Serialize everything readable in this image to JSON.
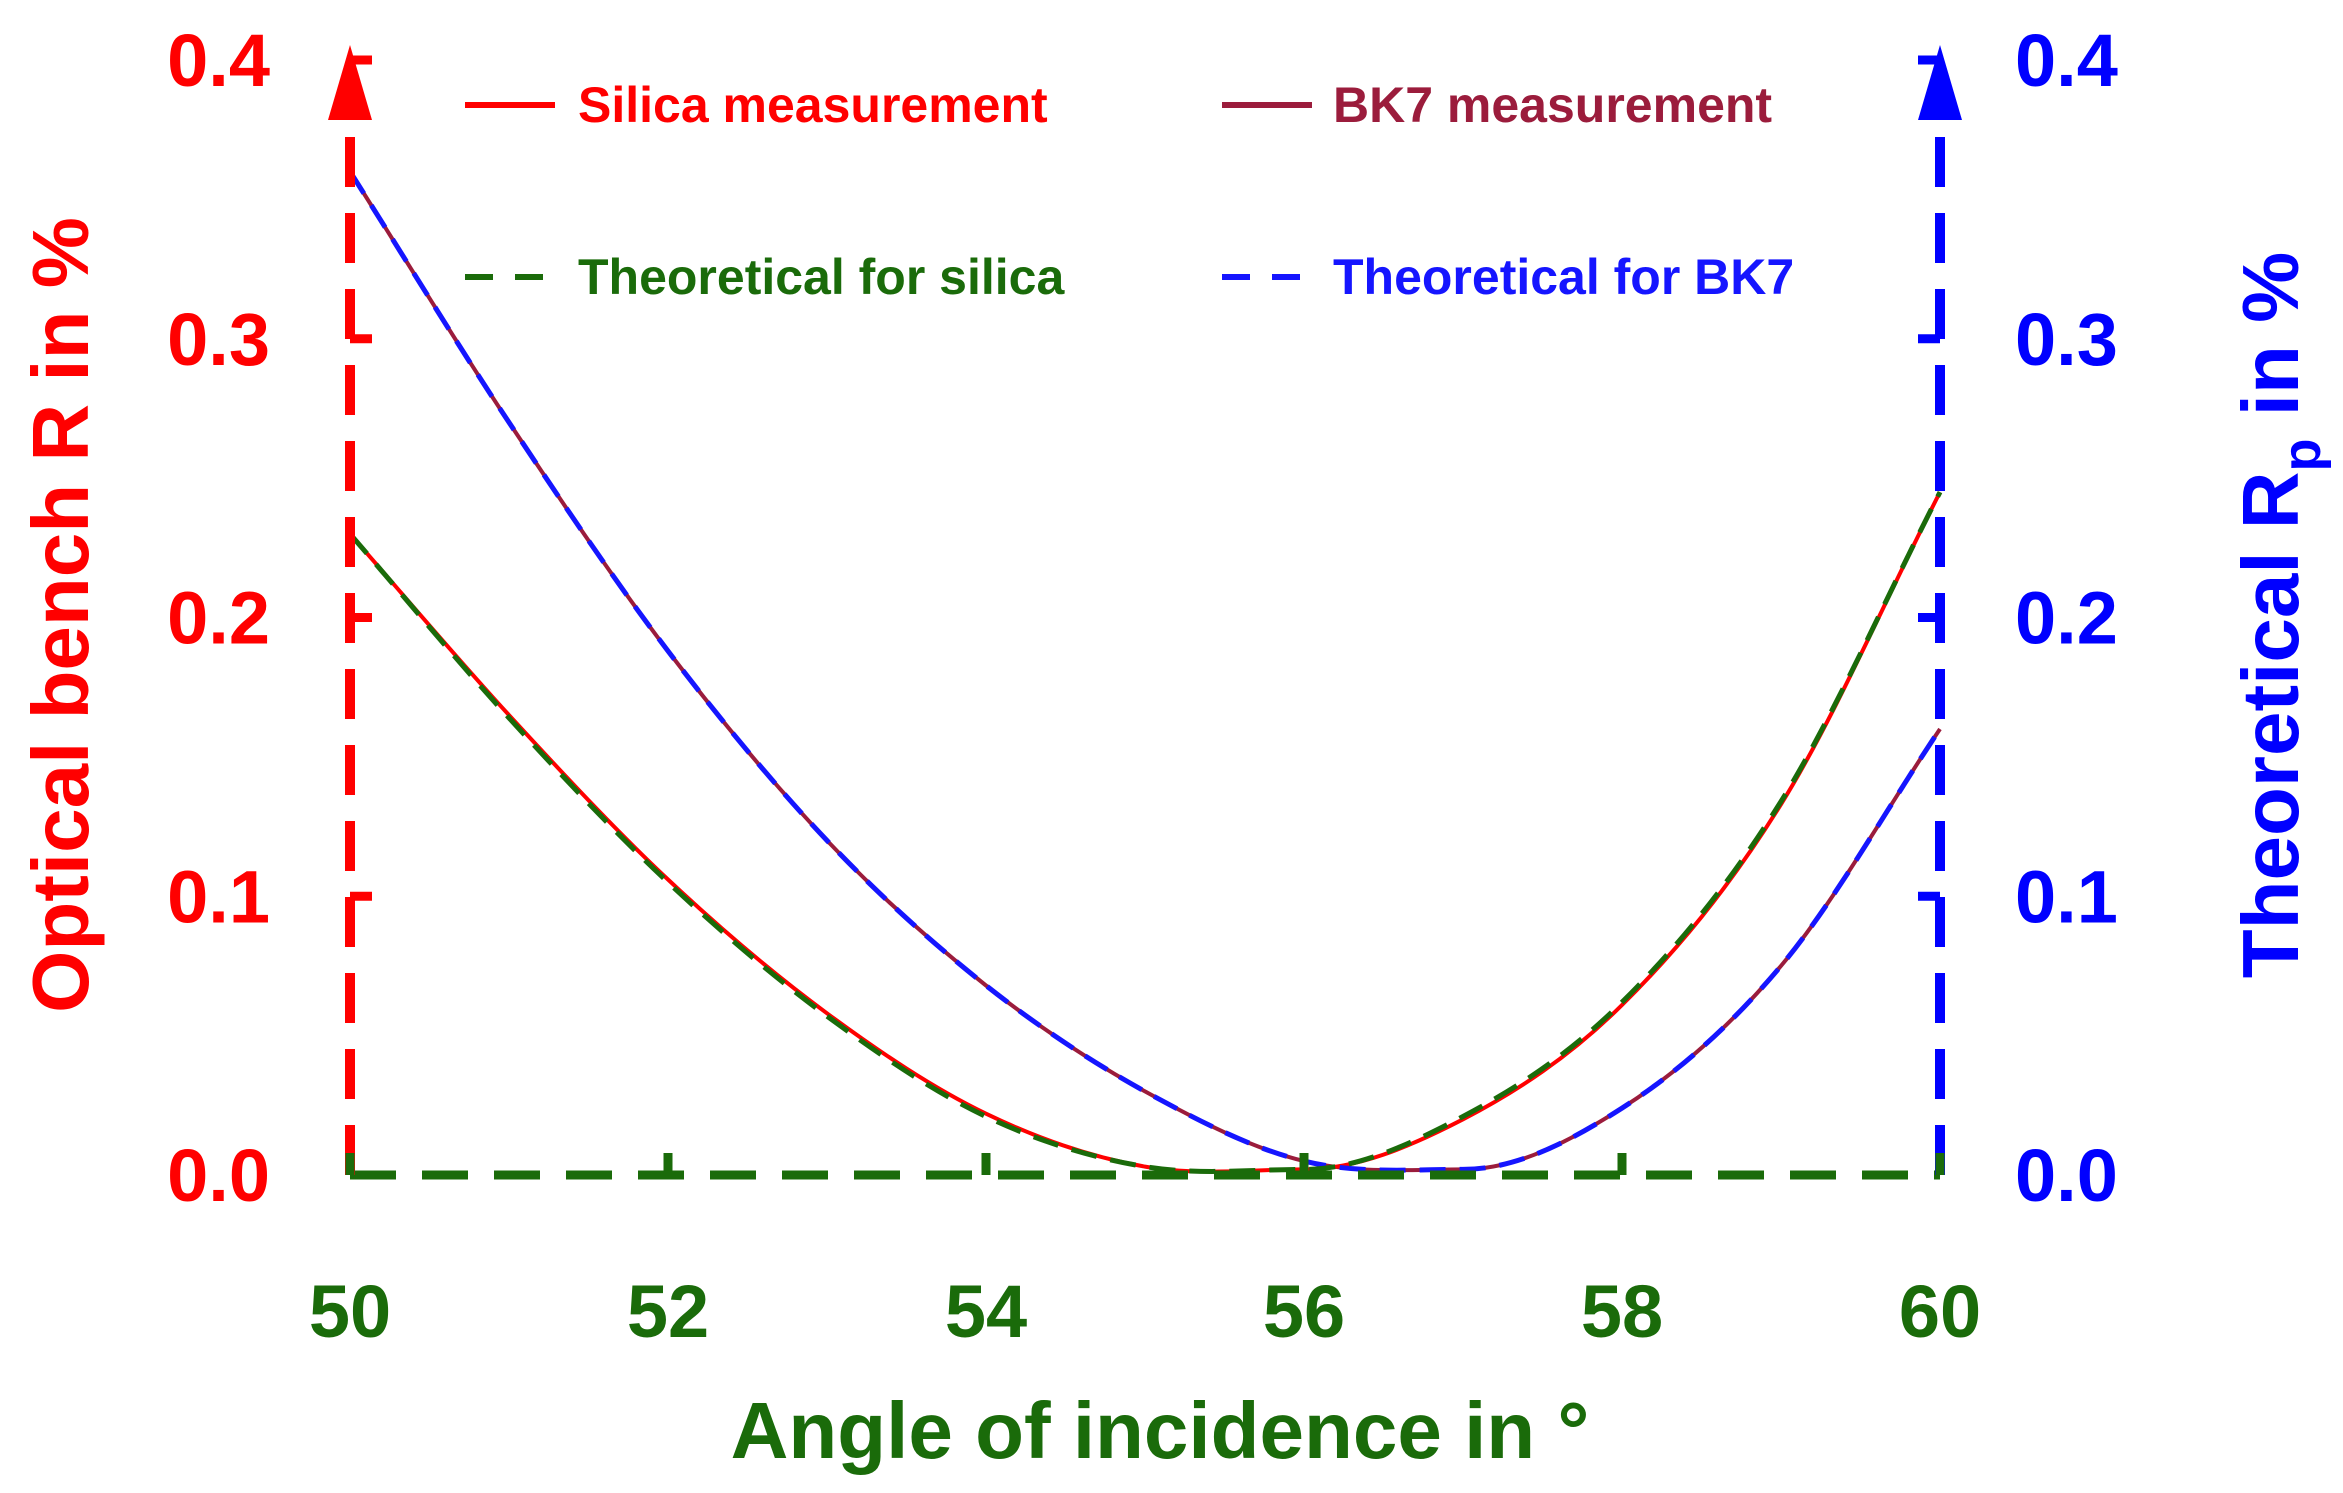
{
  "chart_data": {
    "type": "line",
    "xlabel": "Angle of incidence in °",
    "ylabel_left": "Optical bench R in %",
    "ylabel_right_main": "Theoretical R",
    "ylabel_right_sub": "p",
    "ylabel_right_tail": " in %",
    "xlim": [
      50,
      60
    ],
    "ylim_left": [
      0.0,
      0.4
    ],
    "ylim_right": [
      0.0,
      0.4
    ],
    "x_ticks": [
      50,
      52,
      54,
      56,
      58,
      60
    ],
    "x_tick_labels": [
      "50",
      "52",
      "54",
      "56",
      "58",
      "60"
    ],
    "y_ticks": [
      0.0,
      0.1,
      0.2,
      0.3,
      0.4
    ],
    "y_tick_labels": [
      "0.0",
      "0.1",
      "0.2",
      "0.3",
      "0.4"
    ],
    "colors": {
      "left_axis": "#ff0000",
      "right_axis": "#0000ff",
      "bottom_axis": "#1a6b0a",
      "silica": "#ff0000",
      "bk7": "#9b1c3c",
      "theory_silica": "#1a6b0a",
      "theory_bk7": "#1515ff"
    },
    "series": [
      {
        "name": "Silica measurement",
        "style": "solid",
        "color_key": "silica",
        "x": [
          50,
          51,
          52,
          53,
          54,
          55,
          56,
          57,
          58,
          59,
          60
        ],
        "y": [
          0.23,
          0.165,
          0.106,
          0.058,
          0.022,
          0.003,
          0.002,
          0.02,
          0.061,
          0.133,
          0.245
        ]
      },
      {
        "name": "BK7 measurement",
        "style": "solid",
        "color_key": "bk7",
        "x": [
          50,
          51,
          52,
          53,
          54,
          55,
          56,
          57,
          58,
          59,
          60
        ],
        "y": [
          0.36,
          0.27,
          0.188,
          0.12,
          0.068,
          0.03,
          0.005,
          0.002,
          0.024,
          0.075,
          0.16
        ]
      },
      {
        "name": "Theoretical for silica",
        "style": "dashed",
        "color_key": "theory_silica",
        "x": [
          50,
          51,
          52,
          53,
          54,
          55,
          56,
          57,
          58,
          59,
          60
        ],
        "y": [
          0.23,
          0.164,
          0.105,
          0.057,
          0.021,
          0.003,
          0.002,
          0.021,
          0.062,
          0.134,
          0.245
        ]
      },
      {
        "name": "Theoretical for BK7",
        "style": "dashed",
        "color_key": "theory_bk7",
        "x": [
          50,
          51,
          52,
          53,
          54,
          55,
          56,
          57,
          58,
          59,
          60
        ],
        "y": [
          0.36,
          0.27,
          0.188,
          0.12,
          0.068,
          0.03,
          0.005,
          0.002,
          0.024,
          0.075,
          0.16
        ]
      }
    ]
  }
}
